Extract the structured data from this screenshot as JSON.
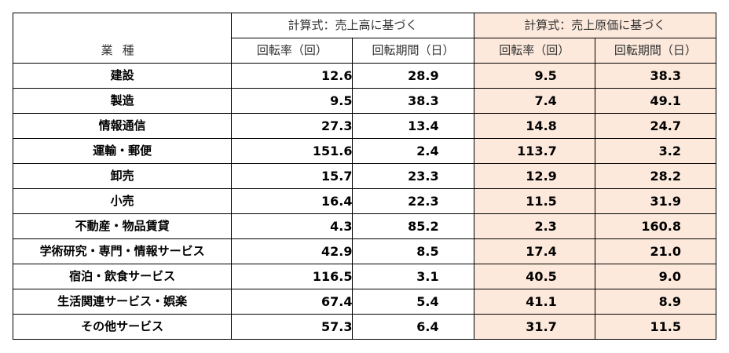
{
  "header": {
    "industry": "業種",
    "group_sales": "計算式：売上高に基づく",
    "group_cogs": "計算式：売上原価に基づく",
    "turnover_rate": "回転率（回）",
    "turnover_period": "回転期間（日）"
  },
  "colors": {
    "cogs_group_bg": "#fde9dc",
    "border": "#000000"
  },
  "rows": [
    {
      "industry": "建設",
      "sales_rate": "12.6",
      "sales_period": "28.9",
      "cogs_rate": "9.5",
      "cogs_period": "38.3"
    },
    {
      "industry": "製造",
      "sales_rate": "9.5",
      "sales_period": "38.3",
      "cogs_rate": "7.4",
      "cogs_period": "49.1"
    },
    {
      "industry": "情報通信",
      "sales_rate": "27.3",
      "sales_period": "13.4",
      "cogs_rate": "14.8",
      "cogs_period": "24.7"
    },
    {
      "industry": "運輸・郵便",
      "sales_rate": "151.6",
      "sales_period": "2.4",
      "cogs_rate": "113.7",
      "cogs_period": "3.2"
    },
    {
      "industry": "卸売",
      "sales_rate": "15.7",
      "sales_period": "23.3",
      "cogs_rate": "12.9",
      "cogs_period": "28.2"
    },
    {
      "industry": "小売",
      "sales_rate": "16.4",
      "sales_period": "22.3",
      "cogs_rate": "11.5",
      "cogs_period": "31.9"
    },
    {
      "industry": "不動産・物品賃貸",
      "sales_rate": "4.3",
      "sales_period": "85.2",
      "cogs_rate": "2.3",
      "cogs_period": "160.8"
    },
    {
      "industry": "学術研究・専門・情報サービス",
      "sales_rate": "42.9",
      "sales_period": "8.5",
      "cogs_rate": "17.4",
      "cogs_period": "21.0"
    },
    {
      "industry": "宿泊・飲食サービス",
      "sales_rate": "116.5",
      "sales_period": "3.1",
      "cogs_rate": "40.5",
      "cogs_period": "9.0"
    },
    {
      "industry": "生活関連サービス・娯楽",
      "sales_rate": "67.4",
      "sales_period": "5.4",
      "cogs_rate": "41.1",
      "cogs_period": "8.9"
    },
    {
      "industry": "その他サービス",
      "sales_rate": "57.3",
      "sales_period": "6.4",
      "cogs_rate": "31.7",
      "cogs_period": "11.5"
    }
  ]
}
